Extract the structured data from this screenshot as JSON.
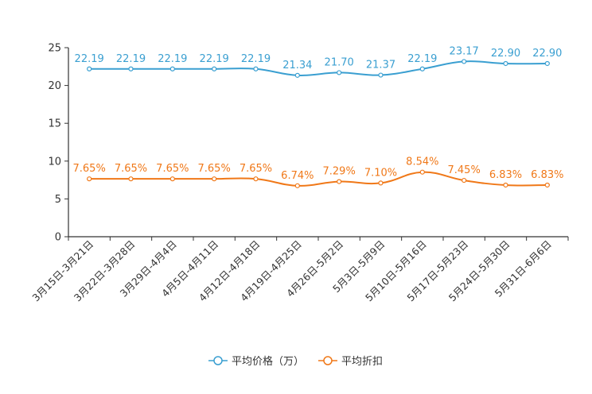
{
  "chart_data": {
    "type": "line",
    "title": "",
    "xlabel": "",
    "ylabel": "",
    "ylim": [
      0,
      25
    ],
    "yticks": [
      0,
      5,
      10,
      15,
      20,
      25
    ],
    "categories": [
      "3月15日-3月21日",
      "3月22日-3月28日",
      "3月29日-4月4日",
      "4月5日-4月11日",
      "4月12日-4月18日",
      "4月19日-4月25日",
      "4月26日-5月2日",
      "5月3日-5月9日",
      "5月10日-5月16日",
      "5月17日-5月23日",
      "5月24日-5月30日",
      "5月31日-6月6日"
    ],
    "series": [
      {
        "name": "平均价格（万）",
        "color": "#3a9fd1",
        "values": [
          22.19,
          22.19,
          22.19,
          22.19,
          22.19,
          21.34,
          21.7,
          21.37,
          22.19,
          23.17,
          22.9,
          22.9
        ],
        "labels": [
          "22.19",
          "22.19",
          "22.19",
          "22.19",
          "22.19",
          "21.34",
          "21.70",
          "21.37",
          "22.19",
          "23.17",
          "22.90",
          "22.90"
        ]
      },
      {
        "name": "平均折扣",
        "color": "#f07818",
        "values": [
          7.65,
          7.65,
          7.65,
          7.65,
          7.65,
          6.74,
          7.29,
          7.1,
          8.54,
          7.45,
          6.83,
          6.83
        ],
        "labels": [
          "7.65%",
          "7.65%",
          "7.65%",
          "7.65%",
          "7.65%",
          "6.74%",
          "7.29%",
          "7.10%",
          "8.54%",
          "7.45%",
          "6.83%",
          "6.83%"
        ]
      }
    ],
    "legend_position": "bottom-center",
    "grid": false
  }
}
